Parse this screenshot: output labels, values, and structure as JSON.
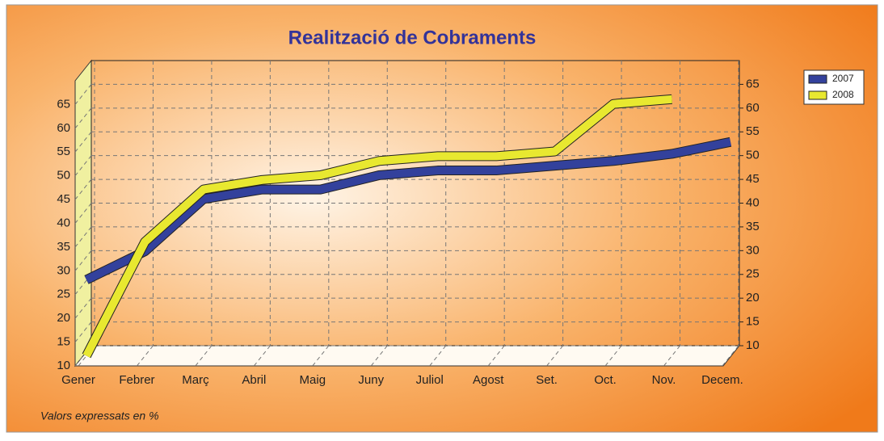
{
  "chart_data": {
    "type": "line",
    "title": "Realització de Cobraments",
    "footnote": "Valors expressats en %",
    "categories": [
      "Gener",
      "Febrer",
      "Març",
      "Abril",
      "Maig",
      "Juny",
      "Juliol",
      "Agost",
      "Set.",
      "Oct.",
      "Nov.",
      "Decem."
    ],
    "series": [
      {
        "name": "2007",
        "color": "#33419c",
        "values": [
          26,
          32,
          43,
          45,
          45,
          48,
          49,
          49,
          50,
          51,
          52.5,
          55
        ]
      },
      {
        "name": "2008",
        "color": "#e8e830",
        "values": [
          10,
          34,
          45,
          47,
          48,
          51,
          52,
          52,
          53,
          63,
          64,
          null
        ]
      }
    ],
    "ylim": [
      10,
      70
    ],
    "yticks": [
      10,
      15,
      20,
      25,
      30,
      35,
      40,
      45,
      50,
      55,
      60,
      65
    ],
    "y2lim": [
      10,
      70
    ],
    "y2ticks": [
      10,
      15,
      20,
      25,
      30,
      35,
      40,
      45,
      50,
      55,
      60,
      65
    ],
    "grid": true,
    "legend": "top-right"
  }
}
